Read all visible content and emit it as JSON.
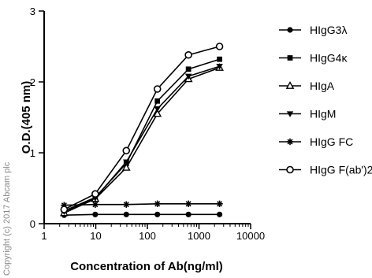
{
  "watermark": "Copyright (c) 2017 Abcam plc",
  "chart_data": {
    "type": "line",
    "title": "",
    "xlabel": "Concentration of Ab(ng/ml)",
    "ylabel": "O.D.(405 nm)",
    "xscale": "log",
    "xlim": [
      1,
      10000
    ],
    "ylim": [
      0,
      3
    ],
    "x_ticks": [
      1,
      10,
      100,
      1000,
      10000
    ],
    "x_tick_labels": [
      "1",
      "10",
      "100",
      "1000",
      "10000"
    ],
    "y_ticks": [
      0,
      1,
      2,
      3
    ],
    "y_tick_labels": [
      "0",
      "1",
      "2",
      "3"
    ],
    "grid": false,
    "legend_position": "right",
    "x": [
      2.44,
      9.77,
      39.06,
      156.25,
      625,
      2500
    ],
    "series": [
      {
        "name": "HIgG3λ",
        "marker": "filled-circle",
        "values": [
          0.12,
          0.13,
          0.13,
          0.13,
          0.13,
          0.13
        ]
      },
      {
        "name": "HIgG4κ",
        "marker": "filled-square",
        "values": [
          0.18,
          0.37,
          0.85,
          1.73,
          2.18,
          2.32
        ]
      },
      {
        "name": "HIgA",
        "marker": "open-triangle-up",
        "values": [
          0.15,
          0.35,
          0.79,
          1.55,
          2.04,
          2.2
        ]
      },
      {
        "name": "HIgM",
        "marker": "filled-triangle-down",
        "values": [
          0.17,
          0.36,
          0.87,
          1.62,
          2.08,
          2.22
        ]
      },
      {
        "name": "HIgG FC",
        "marker": "asterisk",
        "values": [
          0.26,
          0.27,
          0.27,
          0.28,
          0.28,
          0.28
        ]
      },
      {
        "name": "HIgG F(ab')2",
        "marker": "open-circle",
        "values": [
          0.2,
          0.42,
          1.03,
          1.9,
          2.38,
          2.5
        ]
      }
    ]
  }
}
